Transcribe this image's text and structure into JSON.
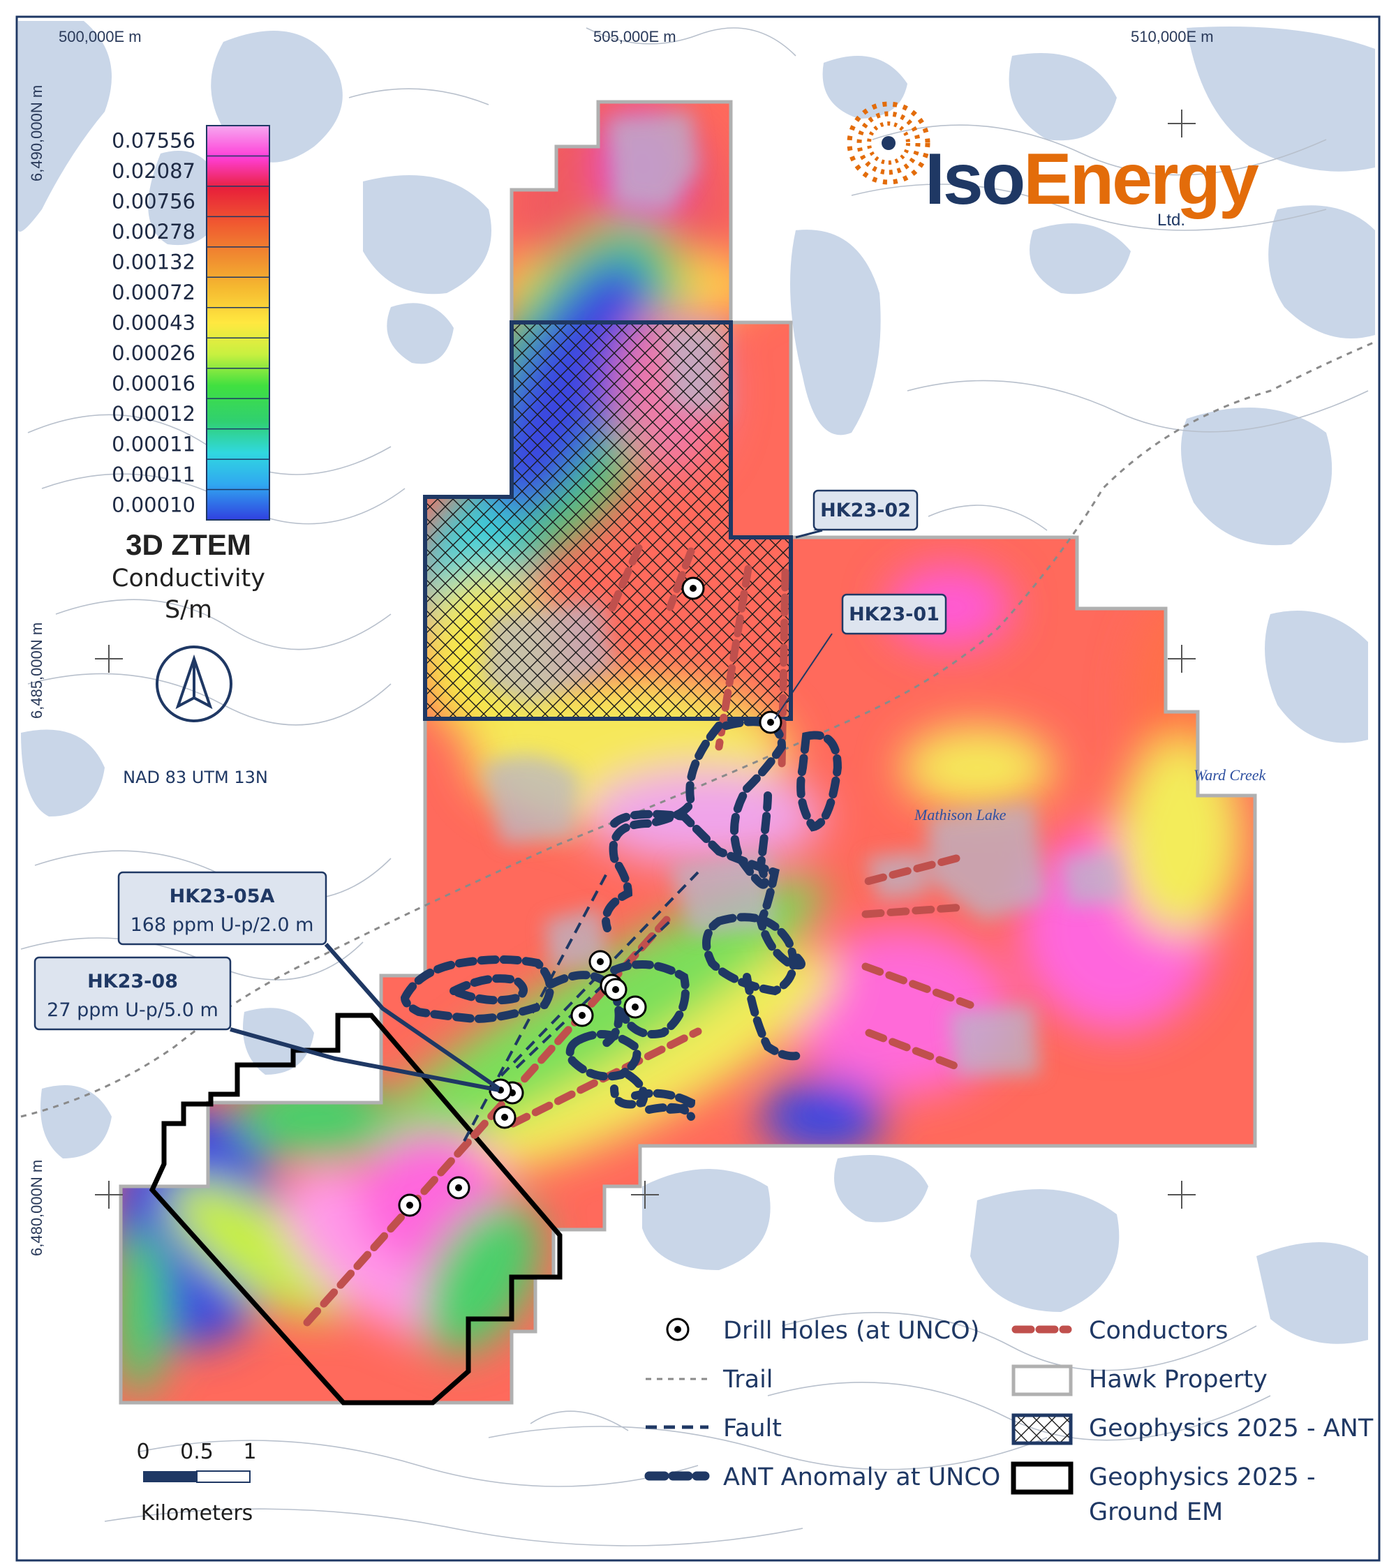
{
  "map": {
    "coordinates": {
      "easting": [
        "500,000E m",
        "505,000E m",
        "510,000E m"
      ],
      "northing": [
        "6,490,000N m",
        "6,485,000N m",
        "6,480,000N m"
      ]
    },
    "projection": "NAD 83 UTM 13N",
    "place_names": {
      "mathison_lake": "Mathison Lake",
      "ward_creek": "Ward Creek"
    }
  },
  "logo": {
    "name_part1": "Iso",
    "name_part2": "Energy",
    "suffix": "Ltd.",
    "color_navy": "#1f3864",
    "color_orange": "#e36c0a"
  },
  "colorbar": {
    "values": [
      "0.07556",
      "0.02087",
      "0.00756",
      "0.00278",
      "0.00132",
      "0.00072",
      "0.00043",
      "0.00026",
      "0.00016",
      "0.00012",
      "0.00011",
      "0.00011",
      "0.00010"
    ],
    "colors": [
      "#f6a8f0",
      "#ff3fd8",
      "#e8203a",
      "#f05a30",
      "#f08a30",
      "#f5b830",
      "#ffe840",
      "#c8f040",
      "#40e040",
      "#30d070",
      "#30d8e0",
      "#30a8f0",
      "#3040e0"
    ],
    "title": "3D ZTEM",
    "subtitle1": "Conductivity",
    "subtitle2": "S/m"
  },
  "north_arrow": "north-arrow-icon",
  "scale_bar": {
    "ticks": [
      "0",
      "0.5",
      "1"
    ],
    "unit": "Kilometers"
  },
  "callouts": {
    "hk23_02": {
      "title": "HK23-02"
    },
    "hk23_01": {
      "title": "HK23-01"
    },
    "hk23_05a": {
      "title": "HK23-05A",
      "detail": "168 ppm U-p/2.0 m"
    },
    "hk23_08": {
      "title": "HK23-08",
      "detail": "27 ppm U-p/5.0 m"
    }
  },
  "legend": {
    "drill_holes": "Drill Holes (at UNCO)",
    "trail": "Trail",
    "fault": "Fault",
    "ant_anomaly": "ANT Anomaly at UNCO",
    "conductors": "Conductors",
    "hawk_property": "Hawk Property",
    "geophysics_ant": "Geophysics 2025 - ANT",
    "geophysics_em_line1": "Geophysics 2025 -",
    "geophysics_em_line2": "Ground EM"
  },
  "colors": {
    "ant_outline": "#1f3864",
    "em_outline": "#000000",
    "conductor": "#c0504d",
    "property_outline": "#b0b0b0",
    "lake": "#c9d6e8"
  }
}
